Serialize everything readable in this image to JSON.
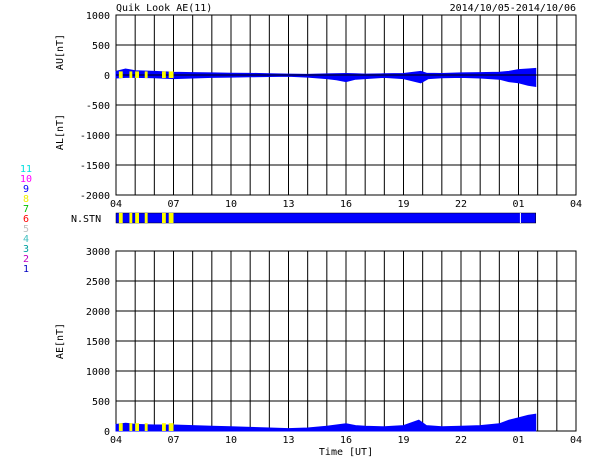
{
  "header": {
    "title": "Quik Look AE(11)",
    "date_range": "2014/10/05-2014/10/06"
  },
  "chart_data": [
    {
      "type": "area",
      "panel": "AU/AL",
      "ylabel_upper": "AU[nT]",
      "ylabel_lower": "AL[nT]",
      "ylim": [
        -2000,
        1000
      ],
      "yticks": [
        1000,
        500,
        0,
        -500,
        -1000,
        -1500,
        -2000
      ],
      "xlim": [
        0,
        24
      ],
      "xtick_labels": [
        "04",
        "07",
        "10",
        "13",
        "16",
        "19",
        "22",
        "01",
        "04"
      ],
      "xtick_hours": [
        0,
        3,
        6,
        9,
        12,
        15,
        18,
        21,
        24
      ],
      "grid": true,
      "data_end_hour": 21.9,
      "series": [
        {
          "name": "AU",
          "color": "#0000ff",
          "hours": [
            0,
            0.5,
            1,
            2,
            3,
            4,
            5,
            6,
            7,
            8,
            9,
            10,
            11,
            12,
            12.5,
            13,
            14,
            15,
            15.9,
            16.2,
            17,
            18,
            19,
            20,
            20.5,
            21,
            21.5,
            21.9
          ],
          "values": [
            60,
            100,
            70,
            60,
            45,
            40,
            35,
            30,
            28,
            20,
            15,
            10,
            18,
            25,
            20,
            15,
            20,
            25,
            60,
            30,
            25,
            35,
            40,
            45,
            60,
            90,
            100,
            110
          ]
        },
        {
          "name": "AL",
          "color": "#0000ff",
          "hours": [
            0,
            0.5,
            1,
            2,
            3,
            4,
            5,
            6,
            7,
            8,
            9,
            10,
            11,
            11.5,
            12,
            12.5,
            13,
            14,
            15,
            15.9,
            16.3,
            17,
            18,
            19,
            20,
            20.5,
            21,
            21.5,
            21.9
          ],
          "values": [
            -50,
            -40,
            -40,
            -45,
            -60,
            -50,
            -40,
            -35,
            -30,
            -25,
            -20,
            -35,
            -60,
            -80,
            -110,
            -70,
            -60,
            -40,
            -60,
            -130,
            -60,
            -45,
            -40,
            -50,
            -70,
            -110,
            -130,
            -170,
            -190
          ]
        }
      ]
    },
    {
      "type": "area",
      "panel": "AE",
      "ylabel": "AE[nT]",
      "xlabel": "Time [UT]",
      "ylim": [
        0,
        3000
      ],
      "yticks": [
        3000,
        2500,
        2000,
        1500,
        1000,
        500,
        0
      ],
      "xlim": [
        0,
        24
      ],
      "xtick_labels": [
        "04",
        "07",
        "10",
        "13",
        "16",
        "19",
        "22",
        "01",
        "04"
      ],
      "xtick_hours": [
        0,
        3,
        6,
        9,
        12,
        15,
        18,
        21,
        24
      ],
      "grid": true,
      "series": [
        {
          "name": "AE",
          "color": "#0000ff",
          "hours": [
            0,
            0.5,
            1,
            2,
            3,
            4,
            5,
            6,
            7,
            8,
            9,
            10,
            11,
            12,
            12.5,
            13,
            14,
            15,
            15.8,
            16.2,
            17,
            18,
            19,
            20,
            20.5,
            21,
            21.5,
            21.9
          ],
          "values": [
            110,
            130,
            110,
            100,
            100,
            90,
            80,
            70,
            60,
            50,
            40,
            50,
            80,
            120,
            90,
            80,
            70,
            90,
            180,
            90,
            70,
            80,
            90,
            120,
            180,
            220,
            260,
            280
          ]
        }
      ]
    }
  ],
  "stations": {
    "label": "N.STN",
    "end_hour": 21.9,
    "yellow_segments": [
      [
        0.15,
        0.35
      ],
      [
        0.7,
        0.85
      ],
      [
        1.0,
        1.2
      ],
      [
        1.5,
        1.65
      ],
      [
        2.4,
        2.6
      ],
      [
        2.75,
        3.0
      ]
    ],
    "legend": [
      {
        "label": "11",
        "color": "#00e0e0"
      },
      {
        "label": "10",
        "color": "#ff00ff"
      },
      {
        "label": "9",
        "color": "#0000ff"
      },
      {
        "label": "8",
        "color": "#f0f000"
      },
      {
        "label": "7",
        "color": "#00c000"
      },
      {
        "label": "6",
        "color": "#ff0000"
      },
      {
        "label": "5",
        "color": "#c0c0c0"
      },
      {
        "label": "4",
        "color": "#40c0c0"
      },
      {
        "label": "3",
        "color": "#00a0a0"
      },
      {
        "label": "2",
        "color": "#c000c0"
      },
      {
        "label": "1",
        "color": "#0000c0"
      }
    ],
    "colors": {
      "main": "#0000ff",
      "alt": "#ffff00",
      "outline": "#000000"
    }
  }
}
